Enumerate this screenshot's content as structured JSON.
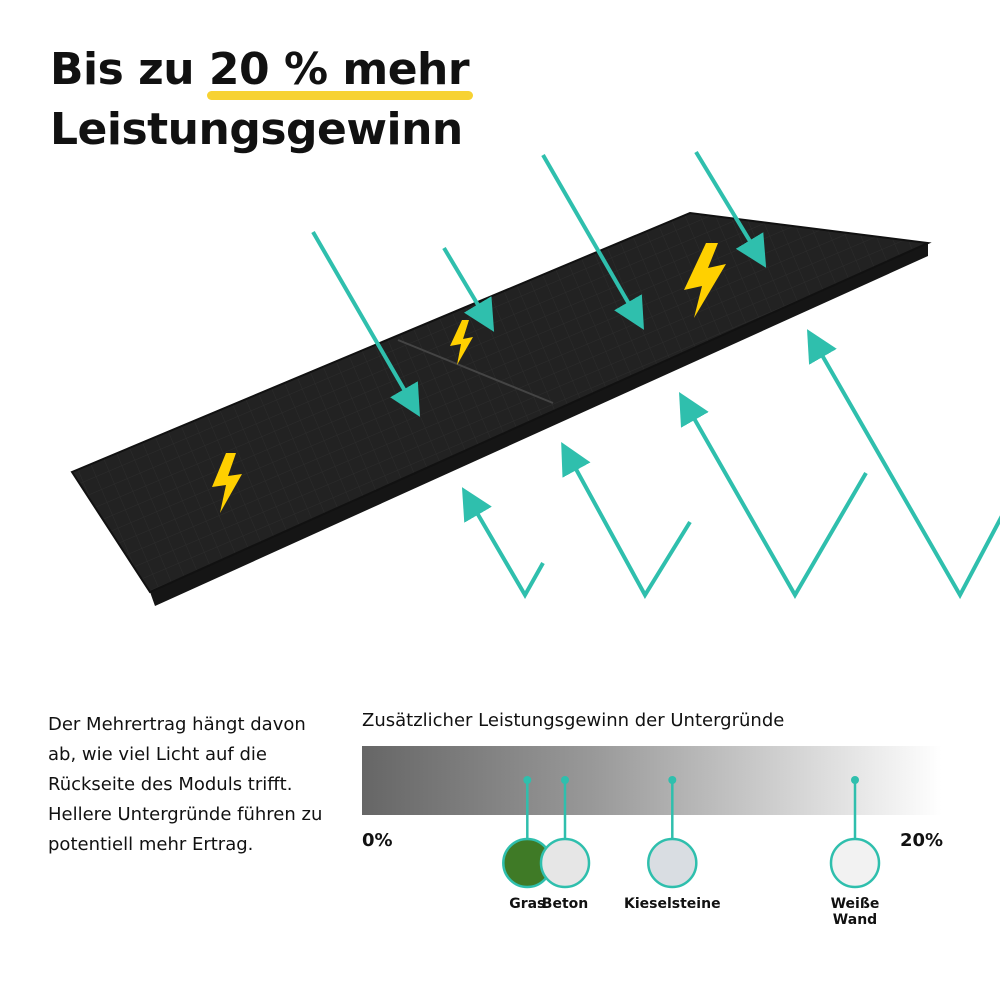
{
  "headline": {
    "line1_prefix": "Bis zu ",
    "line1_highlight": "20 % mehr",
    "line2": "Leistungsgewinn"
  },
  "description": "Der Mehrertrag hängt davon ab, wie viel Licht auf die Rückseite des Moduls trifft. Hellere Untergründe führen zu potentiell mehr Ertrag.",
  "scale": {
    "title": "Zusätzlicher Leistungsgewinn der Untergründe",
    "min_label": "0%",
    "max_label": "20%",
    "markers": [
      {
        "label": "Gras",
        "value_percent": 5.7,
        "swatch": "#3f7a26"
      },
      {
        "label": "Beton",
        "value_percent": 7.0,
        "swatch": "#e6e6e6"
      },
      {
        "label": "Kieselsteine",
        "value_percent": 10.7,
        "swatch": "#d9dde2"
      },
      {
        "label": "Weiße Wand",
        "value_percent": 17.0,
        "swatch": "#f2f2f2"
      }
    ]
  },
  "colors": {
    "accent": "#2fbfad",
    "highlight": "#f7d233",
    "bolt": "#ffd000",
    "panel": "#1c1c1c"
  },
  "icons": [
    "solar-panel",
    "lightning-bolt",
    "sunlight-arrow",
    "reflected-light-arrow"
  ]
}
